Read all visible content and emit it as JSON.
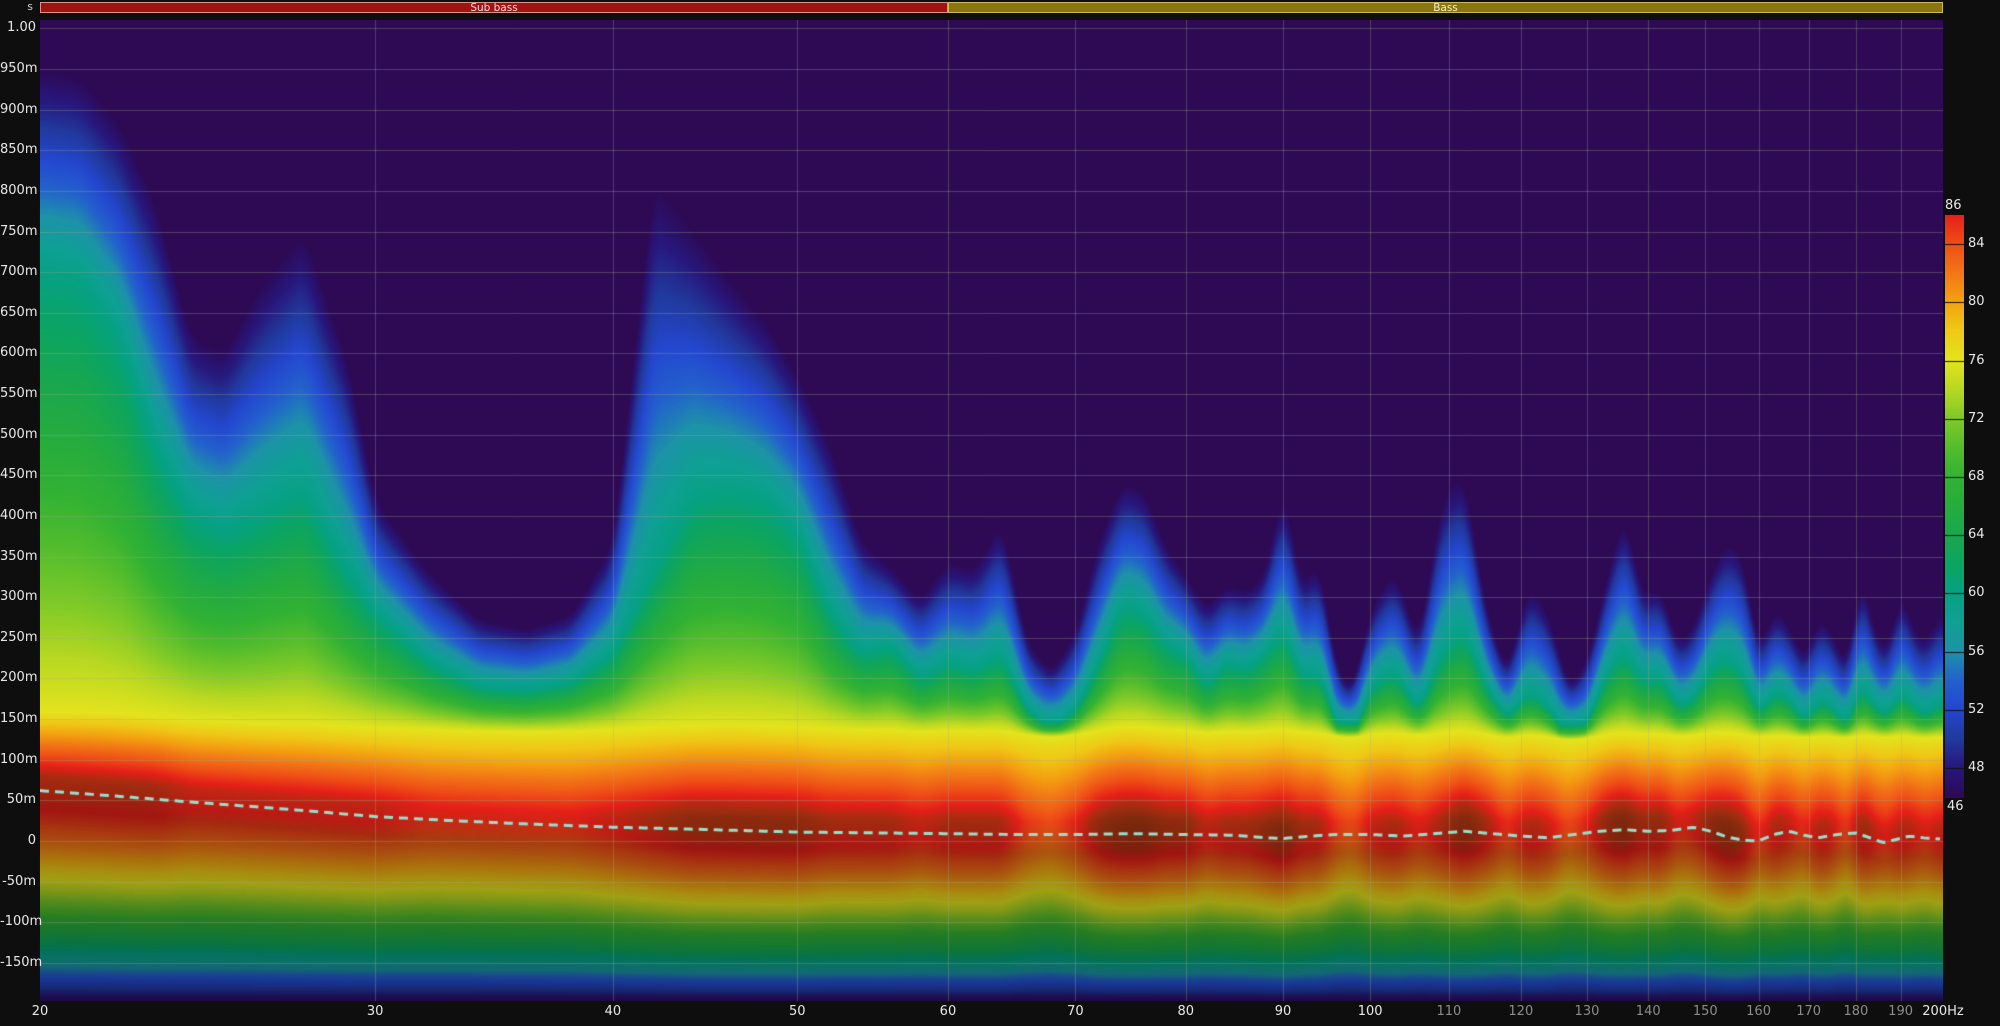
{
  "bands": [
    {
      "label": "Sub bass",
      "from_hz": 20,
      "to_hz": 60,
      "fill": "#a01410",
      "border": "#dc9090"
    },
    {
      "label": "Bass",
      "from_hz": 60,
      "to_hz": 200,
      "fill": "#8a7510",
      "border": "#ccb95c"
    }
  ],
  "chart_data": {
    "type": "heatmap",
    "subtype": "spectrogram-decay",
    "x_axis": {
      "scale": "log",
      "min_hz": 20,
      "max_hz": 200,
      "ticks": [
        {
          "hz": 20,
          "label": "20"
        },
        {
          "hz": 30,
          "label": "30"
        },
        {
          "hz": 40,
          "label": "40"
        },
        {
          "hz": 50,
          "label": "50"
        },
        {
          "hz": 60,
          "label": "60"
        },
        {
          "hz": 70,
          "label": "70"
        },
        {
          "hz": 80,
          "label": "80"
        },
        {
          "hz": 90,
          "label": "90"
        },
        {
          "hz": 100,
          "label": "100"
        },
        {
          "hz": 110,
          "label": "110",
          "muted": true
        },
        {
          "hz": 120,
          "label": "120",
          "muted": true
        },
        {
          "hz": 130,
          "label": "130",
          "muted": true
        },
        {
          "hz": 140,
          "label": "140",
          "muted": true
        },
        {
          "hz": 150,
          "label": "150",
          "muted": true
        },
        {
          "hz": 160,
          "label": "160",
          "muted": true
        },
        {
          "hz": 170,
          "label": "170",
          "muted": true
        },
        {
          "hz": 180,
          "label": "180",
          "muted": true
        },
        {
          "hz": 190,
          "label": "190",
          "muted": true
        },
        {
          "hz": 200,
          "label": "200Hz"
        }
      ]
    },
    "y_axis": {
      "unit": "s",
      "min_ms": -197,
      "max_ms": 1010,
      "ticks": [
        {
          "ms": 1000,
          "label": "1.00"
        },
        {
          "ms": 950,
          "label": "950m"
        },
        {
          "ms": 900,
          "label": "900m"
        },
        {
          "ms": 850,
          "label": "850m"
        },
        {
          "ms": 800,
          "label": "800m"
        },
        {
          "ms": 750,
          "label": "750m"
        },
        {
          "ms": 700,
          "label": "700m"
        },
        {
          "ms": 650,
          "label": "650m"
        },
        {
          "ms": 600,
          "label": "600m"
        },
        {
          "ms": 550,
          "label": "550m"
        },
        {
          "ms": 500,
          "label": "500m"
        },
        {
          "ms": 450,
          "label": "450m"
        },
        {
          "ms": 400,
          "label": "400m"
        },
        {
          "ms": 350,
          "label": "350m"
        },
        {
          "ms": 300,
          "label": "300m"
        },
        {
          "ms": 250,
          "label": "250m"
        },
        {
          "ms": 200,
          "label": "200m"
        },
        {
          "ms": 150,
          "label": "150m"
        },
        {
          "ms": 100,
          "label": "100m"
        },
        {
          "ms": 50,
          "label": "50m"
        },
        {
          "ms": 0,
          "label": "0"
        },
        {
          "ms": -50,
          "label": "-50m"
        },
        {
          "ms": -100,
          "label": "-100m"
        },
        {
          "ms": -150,
          "label": "-150m"
        }
      ]
    },
    "color_scale": {
      "min_db": 46,
      "max_db": 86,
      "top_label": "86",
      "bottom_label": "46",
      "side_labels": [
        84,
        80,
        76,
        72,
        68,
        64,
        60,
        56,
        52,
        48
      ],
      "palette": [
        [
          46,
          "#2e0a55"
        ],
        [
          48,
          "#28177c"
        ],
        [
          50,
          "#213a9e"
        ],
        [
          52,
          "#2447cf"
        ],
        [
          54,
          "#2361cd"
        ],
        [
          56,
          "#1d93a8"
        ],
        [
          58,
          "#10a095"
        ],
        [
          60,
          "#06a283"
        ],
        [
          62,
          "#0ca562"
        ],
        [
          64,
          "#1aa84e"
        ],
        [
          66,
          "#27ad3e"
        ],
        [
          68,
          "#33b234"
        ],
        [
          70,
          "#55bd2d"
        ],
        [
          72,
          "#80ca28"
        ],
        [
          74,
          "#b8d822"
        ],
        [
          76,
          "#e4e41d"
        ],
        [
          78,
          "#efca17"
        ],
        [
          80,
          "#f4a311"
        ],
        [
          82,
          "#f27716"
        ],
        [
          84,
          "#ef4f16"
        ],
        [
          86,
          "#e62019"
        ],
        [
          88,
          "#a42d10"
        ],
        [
          90,
          "#7c2a0e"
        ]
      ]
    },
    "surface": {
      "ridge_offset_ms": 18,
      "floor_ms": -197,
      "floor_db": 46.2,
      "dim_below_ridge": 0.7,
      "freqs_hz": [
        20,
        21,
        22,
        23,
        24,
        25,
        26,
        27.5,
        29,
        30,
        32,
        34,
        36,
        38,
        40,
        42,
        44,
        46,
        48,
        50,
        52,
        54,
        56,
        58,
        60,
        62,
        64,
        66,
        68,
        70,
        72,
        74,
        76,
        78,
        80,
        82,
        84,
        86,
        88,
        90,
        92,
        94,
        96,
        98,
        100,
        103,
        106,
        109,
        112,
        115,
        118,
        121,
        124,
        127,
        130,
        133,
        136,
        139,
        142,
        145,
        148,
        151,
        154,
        157,
        160,
        163,
        166,
        169,
        172,
        175,
        178,
        181,
        184,
        187,
        190,
        193,
        196,
        200
      ],
      "peak_db": [
        88,
        88,
        88,
        88,
        87,
        87,
        87,
        87,
        87,
        87,
        86,
        86,
        86,
        86,
        87,
        88,
        89,
        89,
        89,
        89,
        88,
        88,
        88,
        87,
        88,
        88,
        88,
        85,
        84,
        86,
        89,
        90,
        90,
        89,
        89,
        87,
        88,
        88,
        89,
        90,
        88,
        88,
        85,
        84,
        87,
        88,
        86,
        88,
        90,
        88,
        85,
        88,
        87,
        84,
        86,
        89,
        90,
        88,
        89,
        86,
        87,
        89,
        90,
        89,
        85,
        88,
        87,
        85,
        88,
        87,
        84,
        89,
        87,
        86,
        88,
        87,
        86,
        88
      ],
      "t76_ms": [
        160,
        160,
        158,
        154,
        150,
        148,
        146,
        145,
        142,
        140,
        138,
        136,
        135,
        136,
        138,
        141,
        143,
        144,
        143,
        141,
        139,
        137,
        138,
        135,
        137,
        136,
        137,
        131,
        128,
        131,
        137,
        142,
        141,
        138,
        137,
        133,
        136,
        135,
        136,
        139,
        134,
        134,
        129,
        127,
        133,
        134,
        130,
        134,
        137,
        132,
        127,
        132,
        129,
        124,
        127,
        132,
        135,
        132,
        133,
        129,
        131,
        134,
        135,
        132,
        128,
        131,
        130,
        127,
        130,
        129,
        126,
        132,
        129,
        127,
        131,
        128,
        127,
        130
      ],
      "t60_ms": [
        700,
        690,
        620,
        480,
        400,
        380,
        400,
        430,
        330,
        280,
        220,
        190,
        185,
        195,
        230,
        330,
        420,
        430,
        420,
        380,
        280,
        230,
        240,
        200,
        220,
        210,
        230,
        160,
        140,
        160,
        220,
        290,
        280,
        240,
        230,
        190,
        220,
        210,
        230,
        260,
        200,
        210,
        140,
        130,
        190,
        210,
        160,
        230,
        260,
        190,
        150,
        185,
        165,
        128,
        145,
        205,
        235,
        195,
        205,
        165,
        175,
        215,
        225,
        205,
        155,
        185,
        175,
        145,
        175,
        165,
        140,
        195,
        165,
        155,
        185,
        165,
        155,
        175
      ],
      "t50_ms": [
        880,
        870,
        810,
        700,
        560,
        540,
        600,
        660,
        520,
        380,
        300,
        250,
        240,
        255,
        330,
        680,
        660,
        620,
        580,
        520,
        430,
        330,
        310,
        270,
        310,
        300,
        350,
        220,
        190,
        230,
        330,
        400,
        390,
        330,
        300,
        260,
        290,
        280,
        300,
        390,
        280,
        310,
        190,
        175,
        260,
        300,
        220,
        370,
        400,
        260,
        190,
        280,
        250,
        175,
        200,
        290,
        360,
        270,
        285,
        220,
        240,
        300,
        330,
        310,
        210,
        260,
        240,
        200,
        250,
        230,
        190,
        300,
        230,
        210,
        280,
        230,
        220,
        260
      ]
    },
    "overlay_line": {
      "style": "dashed",
      "color": "#96e0cc",
      "points": [
        [
          20,
          62
        ],
        [
          22,
          55
        ],
        [
          24,
          48
        ],
        [
          26,
          42
        ],
        [
          28,
          36
        ],
        [
          30,
          30
        ],
        [
          33,
          25
        ],
        [
          36,
          21
        ],
        [
          40,
          17
        ],
        [
          45,
          14
        ],
        [
          50,
          11
        ],
        [
          55,
          10
        ],
        [
          60,
          9
        ],
        [
          65,
          8
        ],
        [
          70,
          8
        ],
        [
          75,
          9
        ],
        [
          80,
          8
        ],
        [
          85,
          7
        ],
        [
          88,
          4
        ],
        [
          90,
          3
        ],
        [
          93,
          6
        ],
        [
          96,
          8
        ],
        [
          100,
          8
        ],
        [
          104,
          6
        ],
        [
          108,
          9
        ],
        [
          112,
          12
        ],
        [
          116,
          9
        ],
        [
          120,
          6
        ],
        [
          124,
          4
        ],
        [
          128,
          8
        ],
        [
          132,
          12
        ],
        [
          136,
          14
        ],
        [
          140,
          12
        ],
        [
          144,
          13
        ],
        [
          148,
          17
        ],
        [
          151,
          12
        ],
        [
          154,
          5
        ],
        [
          157,
          1
        ],
        [
          160,
          0
        ],
        [
          163,
          8
        ],
        [
          166,
          12
        ],
        [
          169,
          7
        ],
        [
          172,
          4
        ],
        [
          176,
          8
        ],
        [
          180,
          10
        ],
        [
          183,
          4
        ],
        [
          186,
          -2
        ],
        [
          189,
          2
        ],
        [
          192,
          6
        ],
        [
          195,
          4
        ],
        [
          198,
          3
        ],
        [
          200,
          2
        ]
      ]
    },
    "grid": {
      "x_step_hz": 10,
      "y_step_ms": 50,
      "color": "rgba(165,170,140,0.33)"
    }
  },
  "layout_colors": {
    "page_bg": "#0e0e0e",
    "plot_bg": "#2e0a55",
    "axis_text": "#e8e8e8",
    "axis_text_muted": "#8c8c8c"
  }
}
